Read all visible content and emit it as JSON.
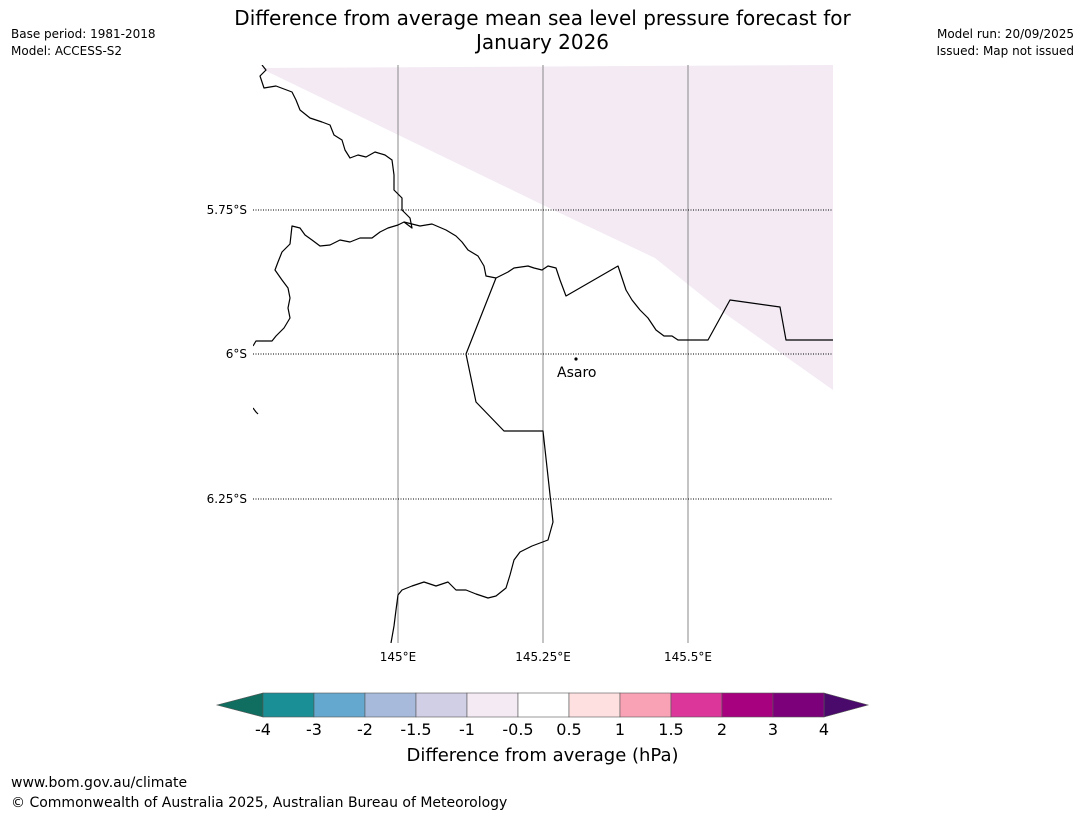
{
  "title": {
    "line1": "Difference from average mean sea level pressure forecast for",
    "line2": "January 2026"
  },
  "meta_left": {
    "base_period": "Base period: 1981-2018",
    "model": "Model: ACCESS-S2"
  },
  "meta_right": {
    "model_run": "Model run: 20/09/2025",
    "issued": "Issued: Map not issued"
  },
  "map": {
    "lat_labels": [
      "5.75°S",
      "6°S",
      "6.25°S"
    ],
    "lon_labels": [
      "145°E",
      "145.25°E",
      "145.5°E"
    ],
    "place": {
      "name": "Asaro"
    },
    "shading": {
      "value_band": "-1 to -0.5",
      "color": "#f3eaf4"
    }
  },
  "colorbar": {
    "label": "Difference from average (hPa)",
    "ticks": [
      "-4",
      "-3",
      "-2",
      "-1.5",
      "-1",
      "-0.5",
      "0.5",
      "1",
      "1.5",
      "2",
      "3",
      "4"
    ],
    "below_color": "#0f6e5f",
    "above_color": "#4a0a6b",
    "colors": [
      "#1a8f96",
      "#65a8cf",
      "#a7badc",
      "#d1cfe6",
      "#f3eaf4",
      "#ffffff",
      "#fde0df",
      "#f9a2b6",
      "#dc369b",
      "#a8017f",
      "#7b007a"
    ]
  },
  "footer": {
    "url": "www.bom.gov.au/climate",
    "copyright": "© Commonwealth of Australia 2025, Australian Bureau of Meteorology"
  }
}
